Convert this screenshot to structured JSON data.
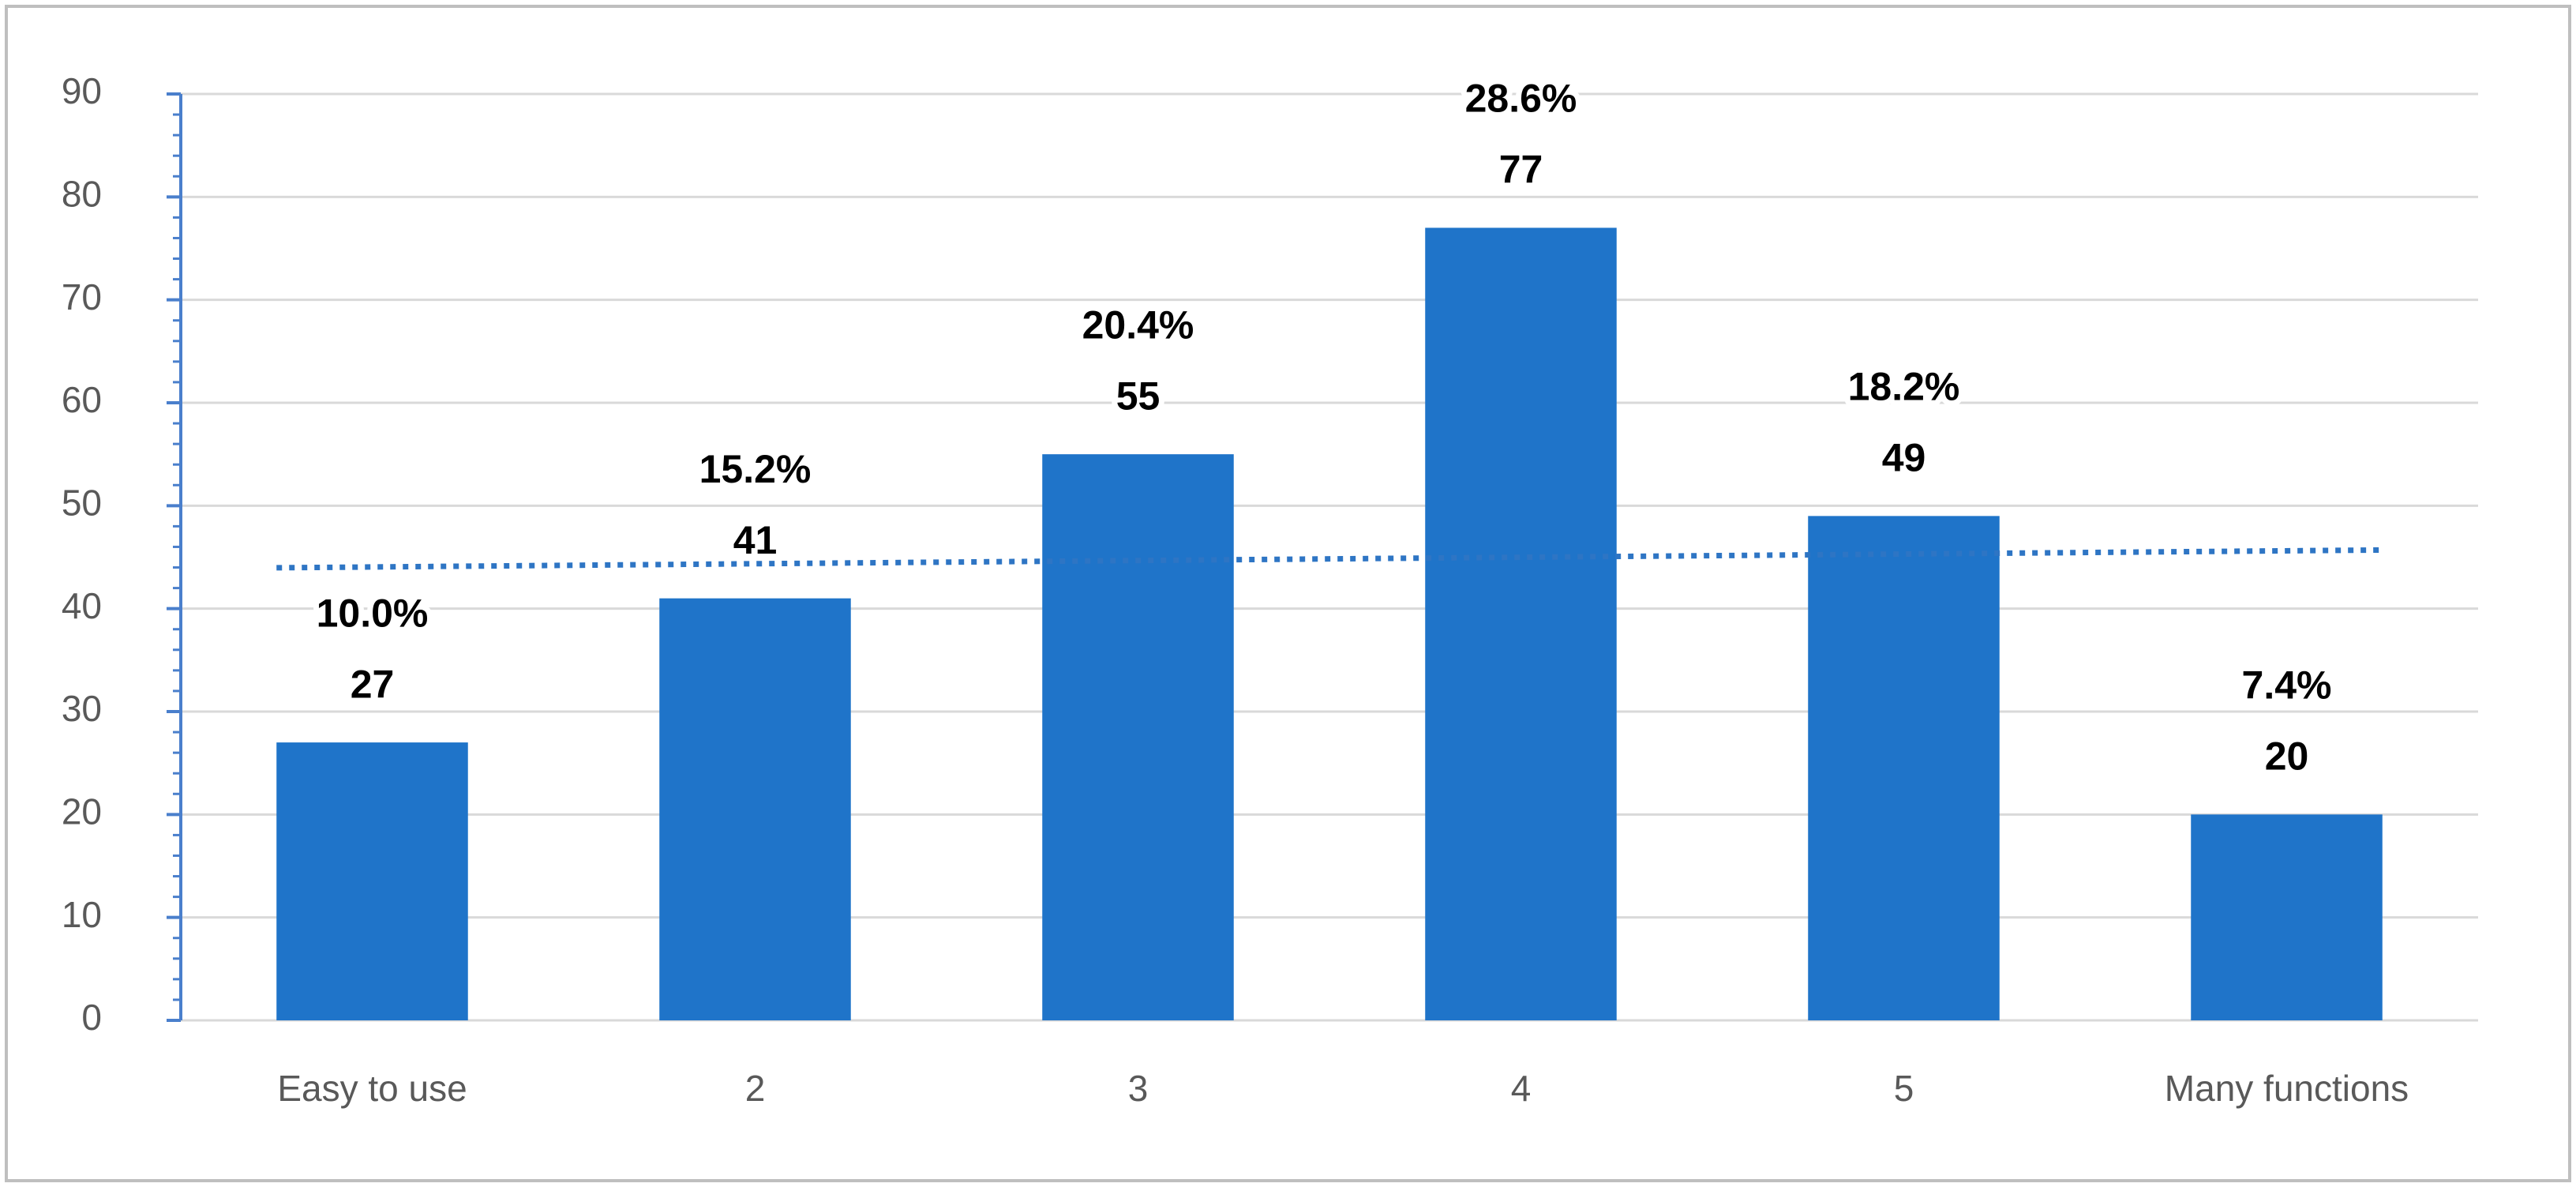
{
  "chart_data": {
    "type": "bar",
    "categories": [
      "Easy to use",
      "2",
      "3",
      "4",
      "5",
      "Many functions"
    ],
    "values": [
      27,
      41,
      55,
      77,
      49,
      20
    ],
    "color": "#1f74c9",
    "shares": {
      "values": [
        10.0,
        15.2,
        20.4,
        28.6,
        18.2,
        7.4
      ],
      "value_labels": [
        "10.0%",
        "15.2%",
        "20.4%",
        "28.6%",
        "18.2%",
        "7.4%"
      ]
    },
    "ylim": [
      0,
      90
    ],
    "yticks": [
      0,
      10,
      20,
      30,
      40,
      50,
      60,
      70,
      80,
      90
    ],
    "grid": true,
    "trendline": true
  }
}
